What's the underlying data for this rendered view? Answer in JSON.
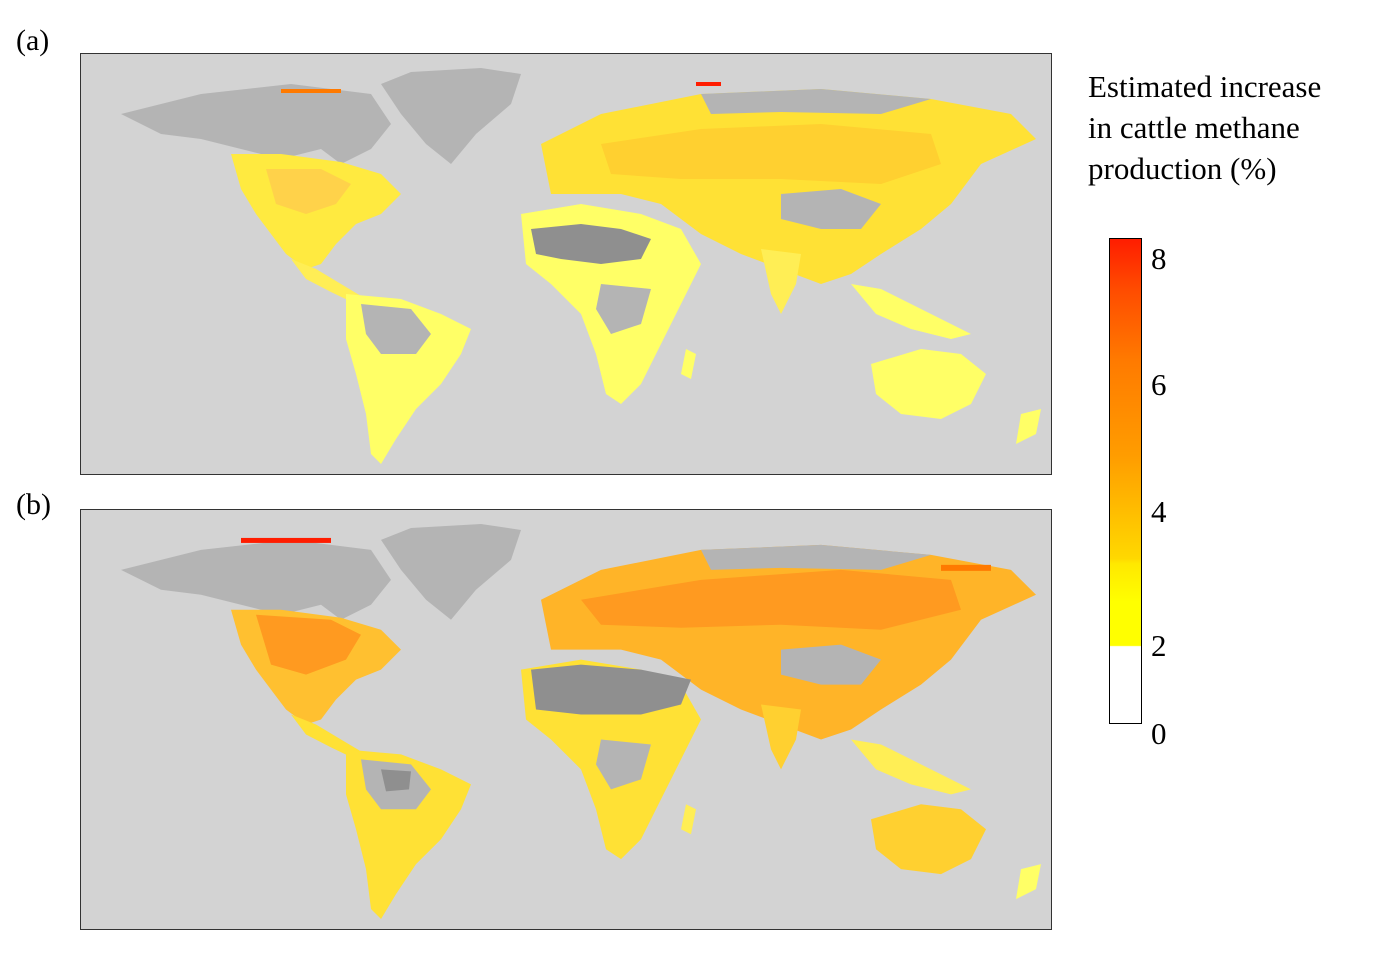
{
  "panels": [
    {
      "label": "(a)",
      "name": "map-a"
    },
    {
      "label": "(b)",
      "name": "map-b"
    }
  ],
  "legend": {
    "title_lines": [
      "Estimated increase",
      "in cattle methane",
      "production (%)"
    ],
    "ticks": [
      {
        "label": "8",
        "value": 8
      },
      {
        "label": "6",
        "value": 6
      },
      {
        "label": "4",
        "value": 4
      },
      {
        "label": "2",
        "value": 2
      },
      {
        "label": "0",
        "value": 0
      }
    ],
    "range": [
      0,
      8.3
    ]
  },
  "colors": {
    "ocean": "#d3d3d3",
    "no_data_land": "#b4b4b4",
    "desert": "#8f8f8f",
    "low": "#ffff00",
    "mid": "#ffc800",
    "high": "#ff7a00",
    "max": "#ff1d00"
  }
}
